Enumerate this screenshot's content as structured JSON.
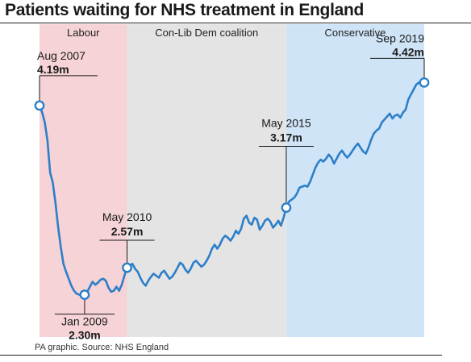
{
  "chart_data": {
    "type": "line",
    "title": "Patients waiting for NHS treatment in England",
    "source": "PA graphic. Source: NHS England",
    "unit": "m",
    "xlim": [
      "2007-08",
      "2019-09"
    ],
    "ylim": [
      2.2,
      4.6
    ],
    "grid": false,
    "line_color": "#2c7fc9",
    "periods": [
      {
        "label": "Labour",
        "start": "2007-08",
        "end": "2010-05",
        "color": "#f6d3d6"
      },
      {
        "label": "Con-Lib Dem coalition",
        "start": "2010-05",
        "end": "2015-05",
        "color": "#e4e4e4"
      },
      {
        "label": "Conservative",
        "start": "2015-05",
        "end": "2019-09",
        "color": "#cfe4f6"
      }
    ],
    "annotations": [
      {
        "date_label": "Aug 2007",
        "value_label": "4.19m",
        "x": "2007-08",
        "y": 4.19,
        "placement": "above-right"
      },
      {
        "date_label": "Jan 2009",
        "value_label": "2.30m",
        "x": "2009-01",
        "y": 2.3,
        "placement": "below"
      },
      {
        "date_label": "May 2010",
        "value_label": "2.57m",
        "x": "2010-05",
        "y": 2.57,
        "placement": "above"
      },
      {
        "date_label": "May 2015",
        "value_label": "3.17m",
        "x": "2015-05",
        "y": 3.17,
        "placement": "above"
      },
      {
        "date_label": "Sep 2019",
        "value_label": "4.42m",
        "x": "2019-09",
        "y": 4.42,
        "placement": "above-left"
      }
    ],
    "series": [
      {
        "values": [
          [
            "2007-08",
            4.19
          ],
          [
            "2007-09",
            4.12
          ],
          [
            "2007-10",
            4.02
          ],
          [
            "2007-11",
            3.84
          ],
          [
            "2007-12",
            3.52
          ],
          [
            "2008-01",
            3.42
          ],
          [
            "2008-02",
            3.22
          ],
          [
            "2008-03",
            2.98
          ],
          [
            "2008-04",
            2.78
          ],
          [
            "2008-05",
            2.61
          ],
          [
            "2008-06",
            2.53
          ],
          [
            "2008-07",
            2.46
          ],
          [
            "2008-08",
            2.39
          ],
          [
            "2008-09",
            2.34
          ],
          [
            "2008-10",
            2.31
          ],
          [
            "2008-11",
            2.3
          ],
          [
            "2008-12",
            2.29
          ],
          [
            "2009-01",
            2.3
          ],
          [
            "2009-02",
            2.33
          ],
          [
            "2009-03",
            2.38
          ],
          [
            "2009-04",
            2.43
          ],
          [
            "2009-05",
            2.4
          ],
          [
            "2009-06",
            2.42
          ],
          [
            "2009-07",
            2.45
          ],
          [
            "2009-08",
            2.46
          ],
          [
            "2009-09",
            2.44
          ],
          [
            "2009-10",
            2.37
          ],
          [
            "2009-11",
            2.33
          ],
          [
            "2009-12",
            2.34
          ],
          [
            "2010-01",
            2.38
          ],
          [
            "2010-02",
            2.34
          ],
          [
            "2010-03",
            2.4
          ],
          [
            "2010-04",
            2.49
          ],
          [
            "2010-05",
            2.57
          ],
          [
            "2010-06",
            2.58
          ],
          [
            "2010-07",
            2.61
          ],
          [
            "2010-08",
            2.56
          ],
          [
            "2010-09",
            2.53
          ],
          [
            "2010-10",
            2.47
          ],
          [
            "2010-11",
            2.42
          ],
          [
            "2010-12",
            2.39
          ],
          [
            "2011-01",
            2.44
          ],
          [
            "2011-02",
            2.48
          ],
          [
            "2011-03",
            2.51
          ],
          [
            "2011-04",
            2.49
          ],
          [
            "2011-05",
            2.47
          ],
          [
            "2011-06",
            2.52
          ],
          [
            "2011-07",
            2.54
          ],
          [
            "2011-08",
            2.5
          ],
          [
            "2011-09",
            2.46
          ],
          [
            "2011-10",
            2.48
          ],
          [
            "2011-11",
            2.52
          ],
          [
            "2011-12",
            2.57
          ],
          [
            "2012-01",
            2.62
          ],
          [
            "2012-02",
            2.6
          ],
          [
            "2012-03",
            2.55
          ],
          [
            "2012-04",
            2.52
          ],
          [
            "2012-05",
            2.56
          ],
          [
            "2012-06",
            2.62
          ],
          [
            "2012-07",
            2.64
          ],
          [
            "2012-08",
            2.61
          ],
          [
            "2012-09",
            2.58
          ],
          [
            "2012-10",
            2.6
          ],
          [
            "2012-11",
            2.64
          ],
          [
            "2012-12",
            2.69
          ],
          [
            "2013-01",
            2.76
          ],
          [
            "2013-02",
            2.8
          ],
          [
            "2013-03",
            2.76
          ],
          [
            "2013-04",
            2.8
          ],
          [
            "2013-05",
            2.86
          ],
          [
            "2013-06",
            2.89
          ],
          [
            "2013-07",
            2.87
          ],
          [
            "2013-08",
            2.84
          ],
          [
            "2013-09",
            2.88
          ],
          [
            "2013-10",
            2.94
          ],
          [
            "2013-11",
            2.91
          ],
          [
            "2013-12",
            2.96
          ],
          [
            "2014-01",
            3.06
          ],
          [
            "2014-02",
            3.09
          ],
          [
            "2014-03",
            3.02
          ],
          [
            "2014-04",
            3.0
          ],
          [
            "2014-05",
            3.07
          ],
          [
            "2014-06",
            3.05
          ],
          [
            "2014-07",
            2.95
          ],
          [
            "2014-08",
            2.99
          ],
          [
            "2014-09",
            3.04
          ],
          [
            "2014-10",
            3.06
          ],
          [
            "2014-11",
            3.03
          ],
          [
            "2014-12",
            2.97
          ],
          [
            "2015-01",
            3.0
          ],
          [
            "2015-02",
            3.04
          ],
          [
            "2015-03",
            2.99
          ],
          [
            "2015-04",
            3.07
          ],
          [
            "2015-05",
            3.17
          ],
          [
            "2015-06",
            3.23
          ],
          [
            "2015-07",
            3.25
          ],
          [
            "2015-08",
            3.27
          ],
          [
            "2015-09",
            3.31
          ],
          [
            "2015-10",
            3.37
          ],
          [
            "2015-11",
            3.38
          ],
          [
            "2015-12",
            3.39
          ],
          [
            "2016-01",
            3.38
          ],
          [
            "2016-02",
            3.43
          ],
          [
            "2016-03",
            3.5
          ],
          [
            "2016-04",
            3.57
          ],
          [
            "2016-05",
            3.62
          ],
          [
            "2016-06",
            3.65
          ],
          [
            "2016-07",
            3.63
          ],
          [
            "2016-08",
            3.66
          ],
          [
            "2016-09",
            3.7
          ],
          [
            "2016-10",
            3.67
          ],
          [
            "2016-11",
            3.61
          ],
          [
            "2016-12",
            3.66
          ],
          [
            "2017-01",
            3.71
          ],
          [
            "2017-02",
            3.74
          ],
          [
            "2017-03",
            3.7
          ],
          [
            "2017-04",
            3.67
          ],
          [
            "2017-05",
            3.7
          ],
          [
            "2017-06",
            3.74
          ],
          [
            "2017-07",
            3.78
          ],
          [
            "2017-08",
            3.81
          ],
          [
            "2017-09",
            3.77
          ],
          [
            "2017-10",
            3.73
          ],
          [
            "2017-11",
            3.71
          ],
          [
            "2017-12",
            3.77
          ],
          [
            "2018-01",
            3.85
          ],
          [
            "2018-02",
            3.91
          ],
          [
            "2018-03",
            3.94
          ],
          [
            "2018-04",
            3.96
          ],
          [
            "2018-05",
            4.02
          ],
          [
            "2018-06",
            4.05
          ],
          [
            "2018-07",
            4.08
          ],
          [
            "2018-08",
            4.11
          ],
          [
            "2018-09",
            4.06
          ],
          [
            "2018-10",
            4.09
          ],
          [
            "2018-11",
            4.1
          ],
          [
            "2018-12",
            4.07
          ],
          [
            "2019-01",
            4.12
          ],
          [
            "2019-02",
            4.15
          ],
          [
            "2019-03",
            4.25
          ],
          [
            "2019-04",
            4.3
          ],
          [
            "2019-05",
            4.35
          ],
          [
            "2019-06",
            4.4
          ],
          [
            "2019-07",
            4.42
          ],
          [
            "2019-08",
            4.4
          ],
          [
            "2019-09",
            4.42
          ]
        ]
      }
    ]
  }
}
